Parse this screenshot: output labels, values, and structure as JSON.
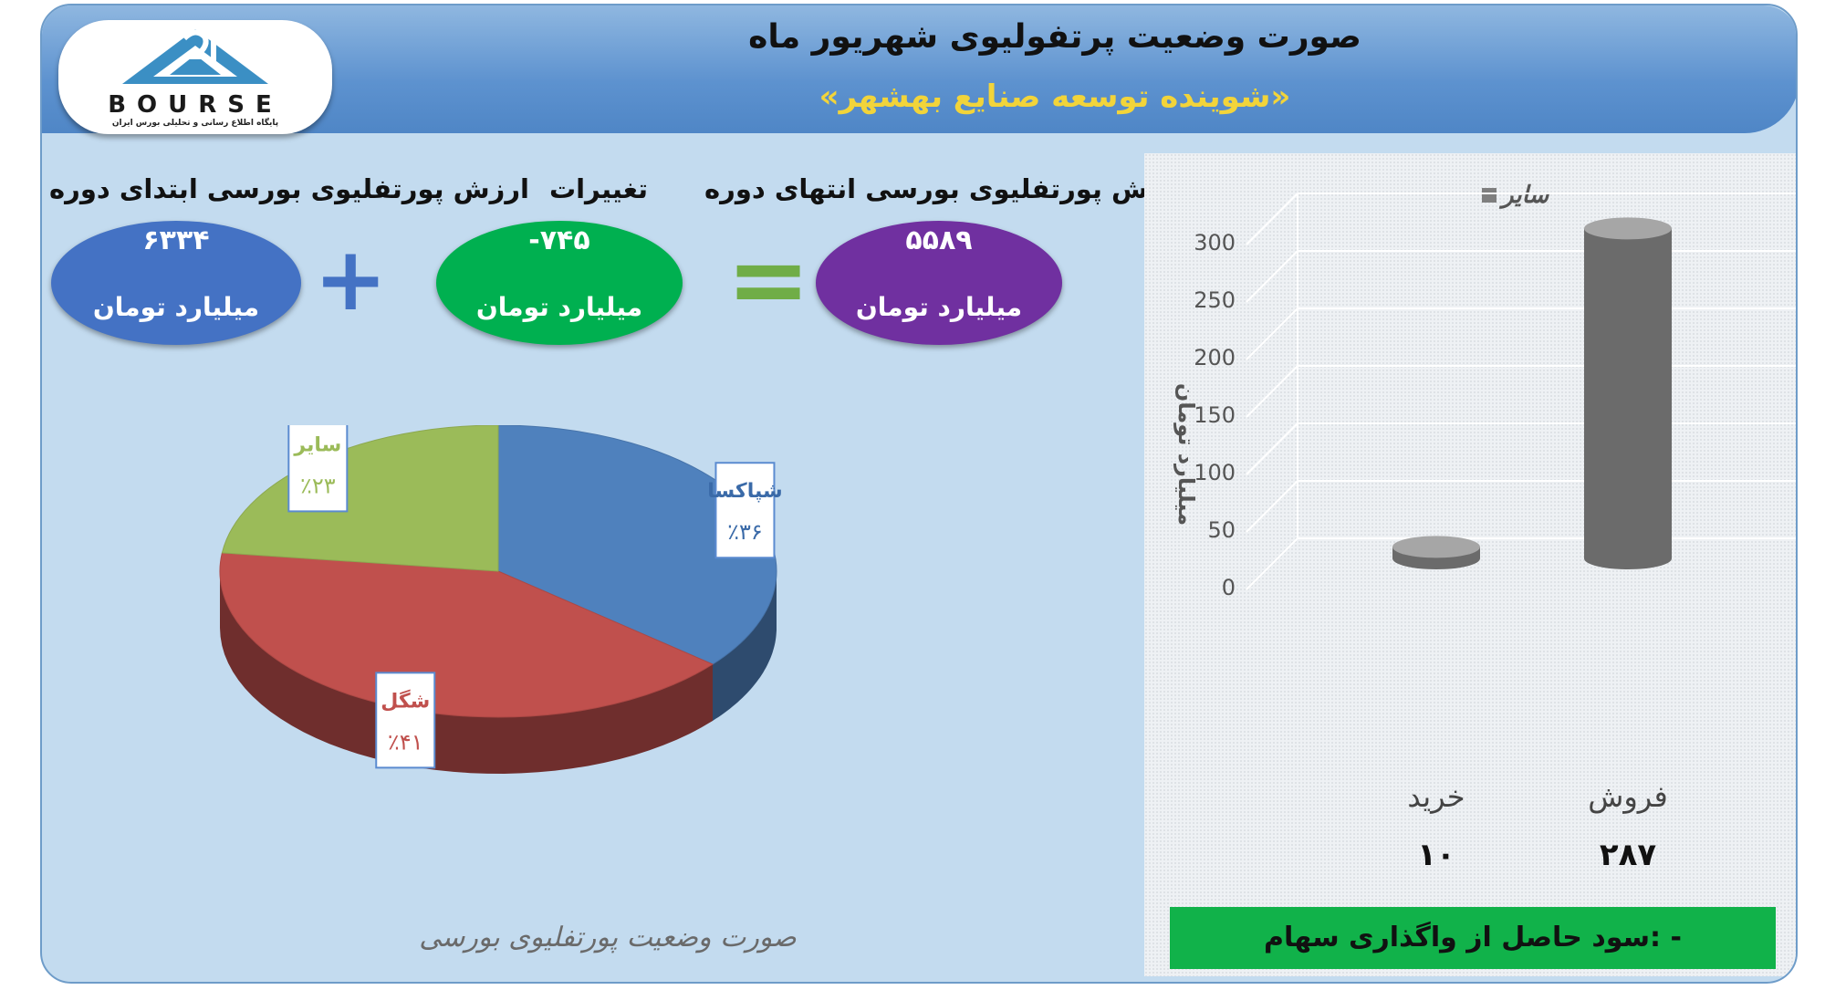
{
  "header": {
    "title": "صورت وضعیت پرتفولیوی شهریور ماه",
    "subtitle": "«شوینده توسعه صنایع بهشهر»"
  },
  "logo": {
    "brand": "BOURSE",
    "tagline": "پایگاه اطلاع رسانی و تحلیلی بورس ایران"
  },
  "summary": {
    "start": {
      "label": "ارزش پورتفلیوی بورسی ابتدای دوره",
      "value": "۶۳۳۴",
      "unit": "میلیارد تومان",
      "color": "#4472c4"
    },
    "change": {
      "label": "تغییرات",
      "value": "-۷۴۵",
      "unit": "میلیارد تومان",
      "color": "#00b050"
    },
    "end": {
      "label": "ارزش پورتفلیوی بورسی انتهای دوره",
      "value": "۵۵۸۹",
      "unit": "میلیارد تومان",
      "color": "#7030a0"
    },
    "plus_symbol": "+",
    "equals_symbol": "=",
    "plus_color": "#4472c4",
    "equals_color": "#70ad47"
  },
  "pie_caption": "صورت وضعیت پورتفلیوی بورسی",
  "profit_text": "سود حاصل از واگذاری سهام: -",
  "chart_data": [
    {
      "type": "pie",
      "style": "3d",
      "categories": [
        "شپاکسا",
        "شگل",
        "سایر"
      ],
      "values": [
        36,
        41,
        23
      ],
      "labels": [
        "٪۳۶",
        "٪۴۱",
        "٪۲۳"
      ],
      "colors": [
        "#4f81bd",
        "#c0504d",
        "#9bbb59"
      ],
      "label_colors": [
        "#3a6aa8",
        "#c0504d",
        "#9bbb59"
      ]
    },
    {
      "type": "bar",
      "style": "3d-cylinder",
      "categories": [
        "خرید",
        "فروش"
      ],
      "values": [
        10,
        287
      ],
      "value_labels": [
        "۱۰",
        "۲۸۷"
      ],
      "series": [
        {
          "name": "سایر",
          "values": [
            10,
            287
          ],
          "color": "#7f7f7f"
        }
      ],
      "ylabel": "میلیارد تومان",
      "ylim": [
        0,
        300
      ],
      "yticks": [
        0,
        50,
        100,
        150,
        200,
        250,
        300
      ],
      "grid": true,
      "legend": "top"
    }
  ]
}
